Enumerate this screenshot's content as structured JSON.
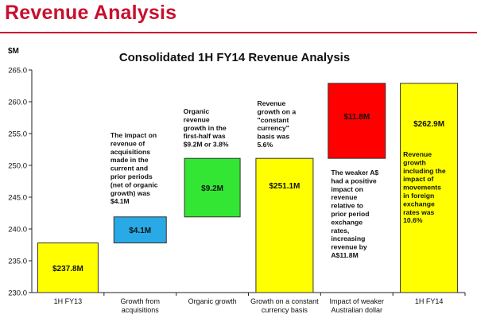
{
  "page": {
    "title": "Revenue Analysis"
  },
  "chart_data": {
    "type": "bar",
    "subtype": "waterfall",
    "title": "Consolidated 1H FY14 Revenue Analysis",
    "unit_label": "$M",
    "ylim": [
      230,
      265
    ],
    "yticks": [
      "230.0",
      "235.0",
      "240.0",
      "245.0",
      "250.0",
      "255.0",
      "260.0",
      "265.0"
    ],
    "grid": false,
    "categories": [
      [
        "1H FY13"
      ],
      [
        "Growth from",
        "acquisitions"
      ],
      [
        "Organic growth"
      ],
      [
        "Growth on a constant",
        "currency basis"
      ],
      [
        "Impact of weaker",
        "Australian dollar"
      ],
      [
        "1H FY14"
      ]
    ],
    "bars": [
      {
        "start": 230.0,
        "end": 237.8,
        "label": "$237.8M",
        "color": "#ffff00"
      },
      {
        "start": 237.8,
        "end": 241.9,
        "label": "$4.1M",
        "color": "#29a9e5"
      },
      {
        "start": 241.9,
        "end": 251.1,
        "label": "$9.2M",
        "color": "#33e633"
      },
      {
        "start": 230.0,
        "end": 251.1,
        "label": "$251.1M",
        "color": "#ffff00"
      },
      {
        "start": 251.1,
        "end": 262.9,
        "label": "$11.8M",
        "color": "#ff0000"
      },
      {
        "start": 230.0,
        "end": 262.9,
        "label": "$262.9M",
        "color": "#ffff00"
      }
    ],
    "annotations": [
      [
        "The impact  on",
        "revenue of",
        "acquisitions",
        "made in the",
        "current and",
        "prior periods",
        "(net of organic",
        "growth) was",
        "$4.1M"
      ],
      [
        "Organic",
        "revenue",
        "growth  in the",
        "first-half  was",
        "$9.2M or 3.8%"
      ],
      [
        "Revenue",
        "growth on a",
        "\"constant",
        "currency\"",
        "basis was",
        "5.6%"
      ],
      [
        "The  weaker A$",
        "had a positive",
        "impact on",
        "revenue",
        "relative to",
        "prior period",
        "exchange",
        "rates,",
        "increasing",
        "revenue by",
        "A$11.8M"
      ],
      [
        "Revenue",
        "growth",
        "including the",
        "impact  of",
        "movements",
        "in foreign",
        "exchange",
        "rates was",
        "10.6%"
      ]
    ]
  }
}
